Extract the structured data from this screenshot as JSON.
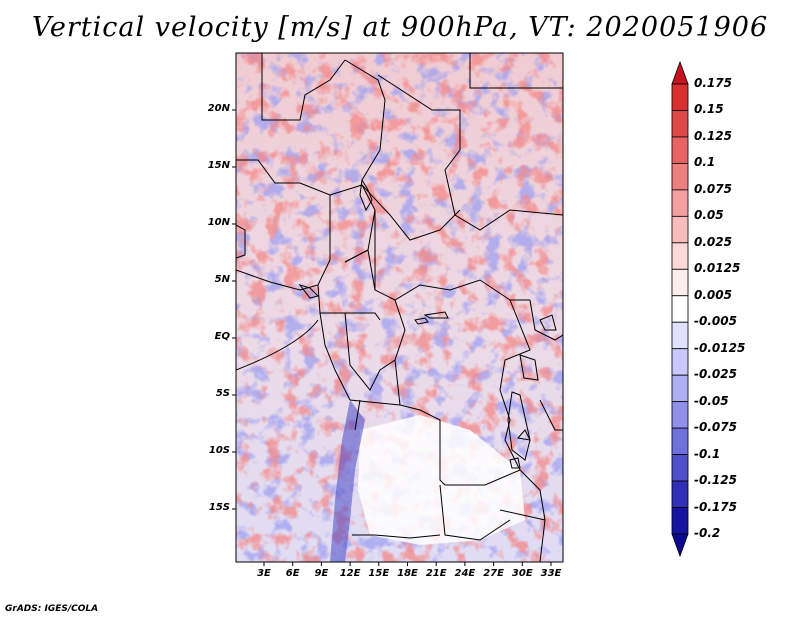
{
  "title": "Vertical velocity [m/s] at 900hPa, VT: 2020051906",
  "credit": "GrADS: IGES/COLA",
  "map": {
    "variable": "Vertical velocity",
    "units": "m/s",
    "level": "900hPa",
    "valid_time": "2020051906",
    "lat_labels": [
      "20N",
      "15N",
      "10N",
      "5N",
      "EQ",
      "5S",
      "10S",
      "15S"
    ],
    "lon_labels": [
      "3E",
      "6E",
      "9E",
      "12E",
      "15E",
      "18E",
      "21E",
      "24E",
      "27E",
      "30E",
      "33E"
    ]
  },
  "colorbar": {
    "levels": [
      "0.175",
      "0.15",
      "0.125",
      "0.1",
      "0.075",
      "0.05",
      "0.025",
      "0.0125",
      "0.005",
      "-0.005",
      "-0.0125",
      "-0.025",
      "-0.05",
      "-0.075",
      "-0.1",
      "-0.125",
      "-0.175",
      "-0.2"
    ],
    "colors": [
      "#c8141e",
      "#d83030",
      "#e04848",
      "#e86464",
      "#ee8080",
      "#f4a0a0",
      "#f8bcbc",
      "#fcd8d8",
      "#fdeeee",
      "#ffffff",
      "#e2e2ff",
      "#c8c8fa",
      "#aeaef4",
      "#9090ea",
      "#7070dc",
      "#5050cc",
      "#3030b8",
      "#1414a0",
      "#0a0a90"
    ]
  },
  "palette": {
    "positive": "#e04848",
    "negative": "#3a3ad0",
    "boundary": "#000000"
  }
}
